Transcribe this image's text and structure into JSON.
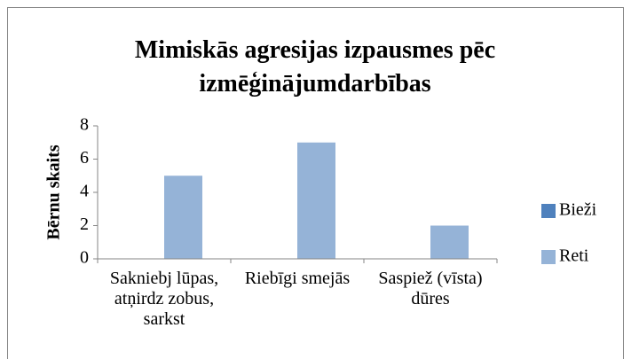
{
  "chart_data": {
    "type": "bar",
    "title": "Mimiskās agresijas izpausmes pēc izmēģinājumdarbības",
    "y_label": "Bērnu skaits",
    "categories": [
      "Sakniebj lūpas, atņirdz zobus, sarkst",
      "Riebīgi smejās",
      "Saspiež (vīsta) dūres"
    ],
    "series": [
      {
        "name": "Bieži",
        "color": "#4f81bd",
        "values": [
          0,
          0,
          0
        ]
      },
      {
        "name": "Reti",
        "color": "#95b3d7",
        "values": [
          5,
          7,
          2
        ]
      }
    ],
    "ylim": [
      0,
      8
    ],
    "yticks": [
      0,
      2,
      4,
      6,
      8
    ],
    "grid": false,
    "legend": "right"
  }
}
